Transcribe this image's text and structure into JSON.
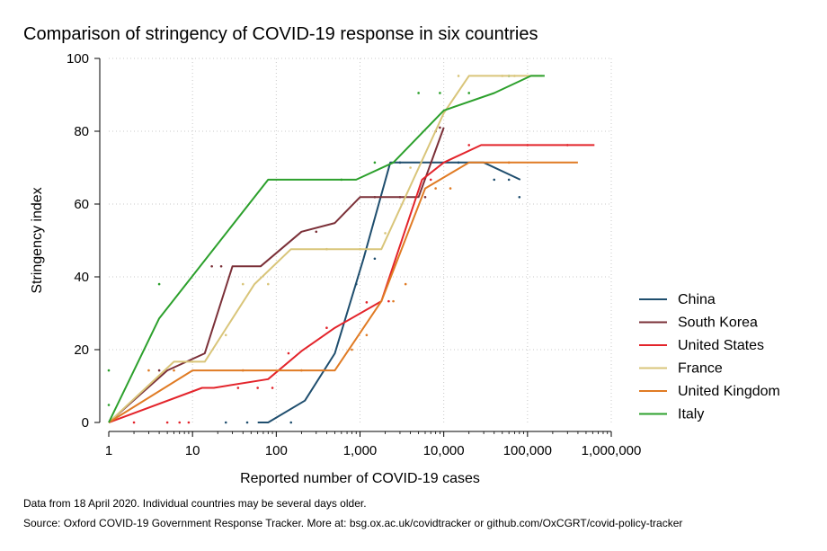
{
  "chart_data": {
    "type": "line",
    "title": "Comparison of stringency of COVID-19 response in six countries",
    "xlabel": "Reported number of COVID-19 cases",
    "ylabel": "Stringency index",
    "x_scale": "log",
    "xlim": [
      1,
      1000000
    ],
    "ylim": [
      0,
      100
    ],
    "x_ticks": [
      1,
      10,
      100,
      1000,
      10000,
      100000,
      1000000
    ],
    "x_tick_labels": [
      "1",
      "10",
      "100",
      "1,000",
      "10,000",
      "100,000",
      "1,000,000"
    ],
    "y_ticks": [
      0,
      20,
      40,
      60,
      80,
      100
    ],
    "y_tick_labels": [
      "0",
      "20",
      "40",
      "60",
      "80",
      "100"
    ],
    "grid": true,
    "legend_position": "right",
    "series": [
      {
        "name": "China",
        "color": "#1f4e6e",
        "x": [
          60,
          80,
          220,
          500,
          1100,
          2300,
          5000,
          30000,
          82000
        ],
        "y": [
          0,
          0,
          6,
          19,
          45,
          71.4,
          71.4,
          71.4,
          66.7
        ],
        "scatter_x": [
          25,
          45,
          150,
          900,
          1500,
          3000,
          15000,
          40000,
          60000,
          80000
        ],
        "scatter_y": [
          0,
          0,
          0,
          38,
          45,
          71.4,
          71.4,
          66.7,
          66.7,
          61.9
        ]
      },
      {
        "name": "South Korea",
        "color": "#7b3038",
        "x": [
          1,
          5,
          14,
          30,
          65,
          200,
          500,
          1000,
          2500,
          5000,
          10000
        ],
        "y": [
          0,
          14.3,
          19,
          42.9,
          42.9,
          52.4,
          54.8,
          61.9,
          61.9,
          61.9,
          81
        ],
        "scatter_x": [
          4,
          17,
          22,
          300,
          1500,
          3000,
          6000,
          8000,
          9000
        ],
        "scatter_y": [
          14.3,
          42.9,
          42.9,
          52.4,
          61.9,
          61.9,
          61.9,
          80,
          81
        ]
      },
      {
        "name": "United States",
        "color": "#e3242b",
        "x": [
          1,
          13,
          18,
          80,
          200,
          500,
          1800,
          5500,
          10000,
          28000,
          630000
        ],
        "y": [
          0,
          9.5,
          9.5,
          11.9,
          19.6,
          26,
          33.3,
          66.7,
          71.4,
          76.2,
          76.2
        ],
        "scatter_x": [
          2,
          5,
          7,
          9,
          35,
          60,
          90,
          140,
          400,
          1200,
          2200,
          7000,
          20000,
          100000,
          300000
        ],
        "scatter_y": [
          0,
          0,
          0,
          0,
          9.5,
          9.5,
          9.5,
          19,
          26,
          33,
          33.3,
          66.7,
          76.2,
          76.2,
          76.2
        ]
      },
      {
        "name": "France",
        "color": "#d9c57a",
        "x": [
          1,
          6,
          14,
          55,
          150,
          500,
          1800,
          10000,
          20000,
          80000,
          150000
        ],
        "y": [
          0,
          16.7,
          16.7,
          38,
          47.6,
          47.6,
          47.6,
          85,
          95.2,
          95.2,
          95.2
        ],
        "scatter_x": [
          10,
          25,
          40,
          80,
          400,
          1000,
          2000,
          4000,
          15000,
          50000,
          70000
        ],
        "scatter_y": [
          16.7,
          24,
          38,
          38,
          47.6,
          47.6,
          52,
          70,
          95.2,
          95.2,
          95.2
        ]
      },
      {
        "name": "United Kingdom",
        "color": "#e07b24",
        "x": [
          1,
          10,
          20,
          100,
          500,
          1800,
          6000,
          20000,
          400000
        ],
        "y": [
          0,
          14.3,
          14.3,
          14.3,
          14.3,
          33.3,
          64.3,
          71.4,
          71.4
        ],
        "scatter_x": [
          3,
          6,
          40,
          200,
          800,
          1200,
          2500,
          3500,
          8000,
          12000,
          60000
        ],
        "scatter_y": [
          14.3,
          14.3,
          14.3,
          14.3,
          20,
          24,
          33.3,
          38,
          64.3,
          64.3,
          71.4
        ]
      },
      {
        "name": "Italy",
        "color": "#2ca02c",
        "x": [
          1,
          4,
          80,
          900,
          2500,
          10000,
          40000,
          110000,
          160000
        ],
        "y": [
          0,
          28.6,
          66.7,
          66.7,
          71.4,
          85.7,
          90.5,
          95.2,
          95.2
        ],
        "scatter_x": [
          1,
          1,
          4,
          600,
          1500,
          5000,
          9000,
          20000,
          60000
        ],
        "scatter_y": [
          14.3,
          4.8,
          38,
          66.7,
          71.4,
          90.5,
          90.5,
          90.5,
          95.2
        ]
      }
    ]
  },
  "notes": {
    "line1": "Data from 18 April 2020. Individual countries may be several days older.",
    "line2": "Source: Oxford COVID-19 Government Response Tracker. More at: bsg.ox.ac.uk/covidtracker or github.com/OxCGRT/covid-policy-tracker"
  }
}
